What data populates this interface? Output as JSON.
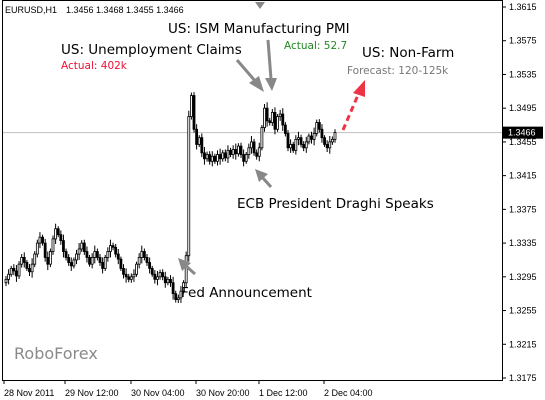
{
  "header": {
    "symbol": "EURUSD,H1",
    "ohlc": "1.3456 1.3468 1.3455 1.3466"
  },
  "current_price_label": "1.3466",
  "watermark": "RoboForex",
  "colors": {
    "candle": "#000000",
    "hline": "#c0c0c0",
    "arrow_gray": "#888888",
    "arrow_red": "#ee3344",
    "actual_red": "#ee1133",
    "actual_green": "#228822",
    "forecast_gray": "#777777"
  },
  "annotations": {
    "unemployment": {
      "title": "US: Unemployment Claims",
      "detail": "Actual: 402k"
    },
    "ism": {
      "title": "US: ISM Manufacturing PMI",
      "detail": "Actual: 52.7"
    },
    "nonfarm": {
      "title": "US: Non-Farm",
      "detail": "Forecast: 120-125k"
    },
    "draghi": {
      "title": "ECB President Draghi Speaks"
    },
    "fed": {
      "title": "Fed Announcement"
    }
  },
  "chart_data": {
    "type": "candlestick",
    "title": "",
    "xlabel": "",
    "ylabel": "",
    "ylim": [
      1.3165,
      1.3625
    ],
    "current_price": 1.3466,
    "y_ticks": [
      "1.3615",
      "1.3575",
      "1.3535",
      "1.3495",
      "1.3455",
      "1.3415",
      "1.3375",
      "1.3335",
      "1.3295",
      "1.3255",
      "1.3215",
      "1.3175"
    ],
    "x_ticks": [
      "28 Nov 2011",
      "29 Nov 12:00",
      "30 Nov 04:00",
      "30 Nov 20:00",
      "1 Dec 12:00",
      "2 Dec 04:00"
    ],
    "grid": false,
    "legend": "none",
    "closes": [
      1.3292,
      1.3298,
      1.3305,
      1.3302,
      1.3296,
      1.331,
      1.3318,
      1.3312,
      1.3305,
      1.3301,
      1.331,
      1.3322,
      1.3335,
      1.3342,
      1.3335,
      1.3318,
      1.331,
      1.3325,
      1.334,
      1.3352,
      1.3345,
      1.3338,
      1.3325,
      1.3318,
      1.3312,
      1.3308,
      1.3315,
      1.3322,
      1.3328,
      1.3335,
      1.3325,
      1.3318,
      1.331,
      1.3318,
      1.3325,
      1.3318,
      1.3312,
      1.3305,
      1.3318,
      1.3325,
      1.3332,
      1.333,
      1.3322,
      1.3316,
      1.3305,
      1.3298,
      1.3295,
      1.3292,
      1.3295,
      1.3298,
      1.331,
      1.3318,
      1.3325,
      1.3318,
      1.3312,
      1.3305,
      1.3298,
      1.3292,
      1.3295,
      1.33,
      1.3295,
      1.3288,
      1.3292,
      1.3288,
      1.3275,
      1.3268,
      1.327,
      1.3278,
      1.3288,
      1.332,
      1.3485,
      1.351,
      1.347,
      1.3452,
      1.346,
      1.3442,
      1.3435,
      1.344,
      1.3432,
      1.3438,
      1.3432,
      1.344,
      1.3435,
      1.3442,
      1.3436,
      1.3445,
      1.344,
      1.3446,
      1.3441,
      1.345,
      1.344,
      1.3432,
      1.344,
      1.3448,
      1.3455,
      1.3442,
      1.3438,
      1.3448,
      1.3472,
      1.3495,
      1.348,
      1.3478,
      1.349,
      1.347,
      1.3485,
      1.3488,
      1.3475,
      1.3465,
      1.3448,
      1.3452,
      1.3445,
      1.3458,
      1.346,
      1.3452,
      1.3448,
      1.3455,
      1.3462,
      1.3458,
      1.3465,
      1.3478,
      1.347,
      1.346,
      1.3452,
      1.3448,
      1.3455,
      1.3458,
      1.3466
    ]
  }
}
